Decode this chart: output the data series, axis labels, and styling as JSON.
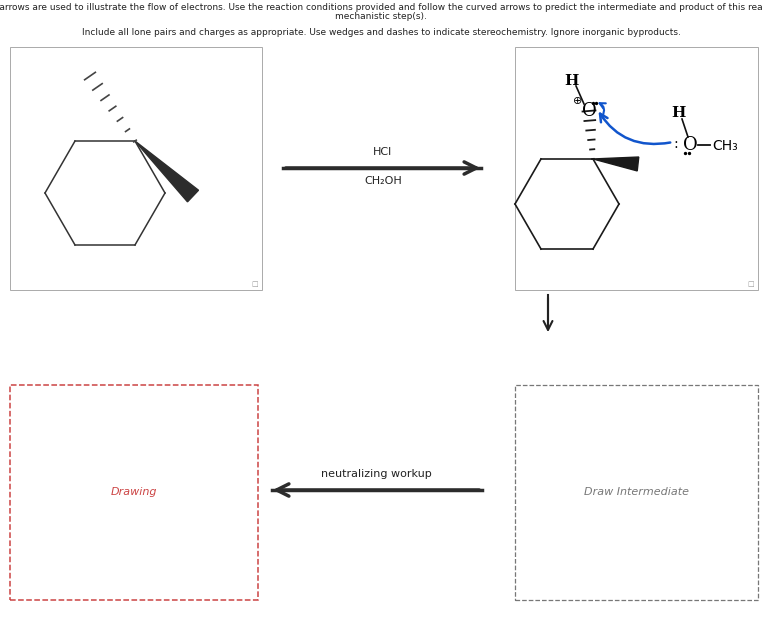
{
  "title_line1": "Curved arrows are used to illustrate the flow of electrons. Use the reaction conditions provided and follow the curved arrows to predict the intermediate and product of this reaction or",
  "title_line2": "mechanistic step(s).",
  "subtitle": "Include all lone pairs and charges as appropriate. Use wedges and dashes to indicate stereochemistry. Ignore inorganic byproducts.",
  "arrow_label_top": "HCl",
  "arrow_label_bottom": "CH₂OH",
  "neutralizing_label": "neutralizing workup",
  "drawing_label": "Drawing",
  "intermediate_label": "Draw Intermediate",
  "bg_color": "#ffffff",
  "drawing_box_color": "#cc4444",
  "box_edge_color": "#aaaaaa",
  "intermediate_box_color": "#777777",
  "title_fontsize": 6.5,
  "chem_fontsize": 9.5
}
